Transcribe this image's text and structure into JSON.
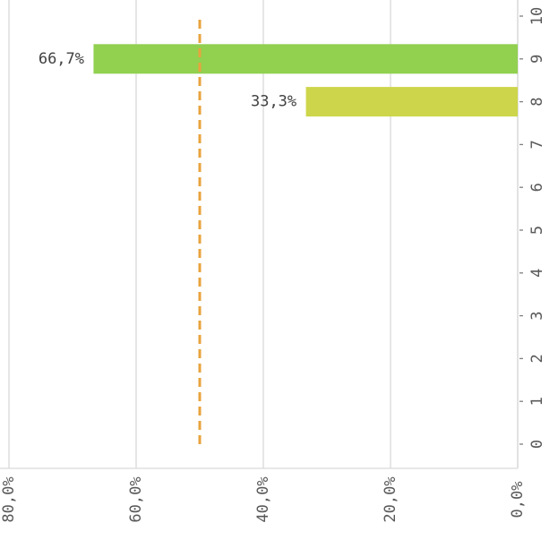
{
  "chart_data": {
    "type": "bar",
    "orientation": "horizontal",
    "rendered_rotated_180": true,
    "categories": [
      "0",
      "1",
      "2",
      "3",
      "4",
      "5",
      "6",
      "7",
      "8",
      "9",
      "10"
    ],
    "values": [
      0,
      0,
      0,
      0,
      0,
      0,
      0,
      0,
      33.3,
      66.7,
      0
    ],
    "data_labels": [
      "",
      "",
      "",
      "",
      "",
      "",
      "",
      "",
      "33,3%",
      "66,7%",
      ""
    ],
    "bar_colors": {
      "8": "#cdd64a",
      "9": "#92d050"
    },
    "xlim": [
      0,
      80
    ],
    "x_ticks": [
      "0,0%",
      "20,0%",
      "40,0%",
      "60,0%",
      "80,0%"
    ],
    "x_tick_values": [
      0,
      20,
      40,
      60,
      80
    ],
    "reference_line": {
      "value": 50,
      "style": "dashed",
      "color": "#e8a33d",
      "from_category": "0",
      "to_category": "10"
    },
    "gridlines": true,
    "title": "",
    "xlabel": "",
    "ylabel": ""
  }
}
